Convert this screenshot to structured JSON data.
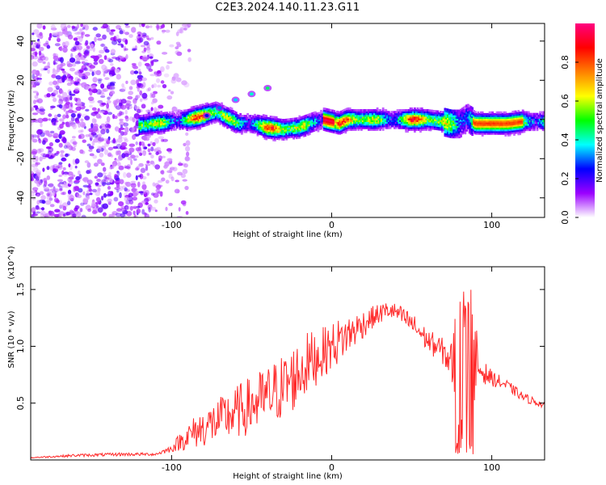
{
  "title": "C2E3.2024.140.11.23.G11",
  "colors": {
    "snr_line": "#ff2a2a",
    "axis": "#000000"
  },
  "chart_data": [
    {
      "type": "heatmap",
      "xlabel": "Height of straight line (km)",
      "ylabel": "Frequency (Hz)",
      "xlim": [
        -188,
        133
      ],
      "ylim": [
        -50,
        49
      ],
      "x_ticks": [
        -100,
        0,
        100
      ],
      "y_ticks": [
        -40,
        -20,
        0,
        20,
        40
      ],
      "colorbar": {
        "label": "Normalized spectral amplitude",
        "range": [
          0.0,
          1.0
        ],
        "ticks": [
          "0.0",
          "0.2",
          "0.4",
          "0.6",
          "0.8"
        ],
        "colormap": [
          "#ffffff",
          "#9b00ff",
          "#0000ff",
          "#00ffff",
          "#00ff00",
          "#ffff00",
          "#ff8000",
          "#ff0000",
          "#ff0080"
        ]
      },
      "ridge": {
        "x": [
          -120,
          -110,
          -100,
          -90,
          -80,
          -72,
          -65,
          -58,
          -50,
          -40,
          -30,
          -20,
          -10,
          -5,
          0,
          5,
          10,
          20,
          40,
          60,
          70,
          75,
          80,
          85,
          90,
          100,
          110,
          120,
          133
        ],
        "frequency": [
          -3,
          -2,
          -1,
          0,
          2,
          4,
          1,
          -2,
          -2,
          -4,
          -5,
          -4,
          -1,
          0,
          -1,
          -2,
          0,
          0,
          0,
          0,
          -1,
          -2,
          -2,
          1,
          -2,
          -2,
          -2,
          -1,
          -1
        ]
      },
      "branch": {
        "x": [
          -78,
          -70,
          -60,
          -50,
          -40
        ],
        "frequency": [
          2,
          6,
          10,
          13,
          16
        ]
      },
      "noise_region_x": [
        -188,
        -100
      ]
    },
    {
      "type": "line",
      "xlabel": "Height of straight line (km)",
      "ylabel": "SNR (10 * v/v)",
      "y_multiplier": "(x10^4)",
      "xlim": [
        -188,
        133
      ],
      "ylim": [
        0,
        1.7
      ],
      "x_ticks": [
        -100,
        0,
        100
      ],
      "y_ticks": [
        0.5,
        1.0,
        1.5
      ],
      "y_tick_labels": [
        "0.5",
        "1.0",
        "1.5"
      ],
      "series": [
        {
          "x": [
            -188,
            -160,
            -130,
            -110,
            -100,
            -95,
            -85,
            -70,
            -55,
            -40,
            -25,
            -15,
            -5,
            5,
            15,
            25,
            35,
            40,
            50,
            60,
            70,
            75,
            78,
            80,
            82,
            85,
            88,
            92,
            100,
            110,
            120,
            133
          ],
          "y": [
            0.02,
            0.04,
            0.05,
            0.05,
            0.1,
            0.16,
            0.25,
            0.35,
            0.45,
            0.55,
            0.7,
            0.85,
            0.95,
            1.05,
            1.15,
            1.25,
            1.32,
            1.3,
            1.2,
            1.05,
            0.95,
            0.85,
            0.9,
            0.8,
            0.75,
            0.8,
            0.85,
            0.8,
            0.72,
            0.65,
            0.55,
            0.48
          ],
          "jitter": [
            0.005,
            0.012,
            0.015,
            0.012,
            0.03,
            0.08,
            0.15,
            0.2,
            0.25,
            0.28,
            0.3,
            0.28,
            0.22,
            0.2,
            0.15,
            0.1,
            0.08,
            0.08,
            0.1,
            0.1,
            0.12,
            0.2,
            0.6,
            0.75,
            0.7,
            0.65,
            0.7,
            0.12,
            0.07,
            0.05,
            0.04,
            0.03
          ]
        }
      ]
    }
  ]
}
